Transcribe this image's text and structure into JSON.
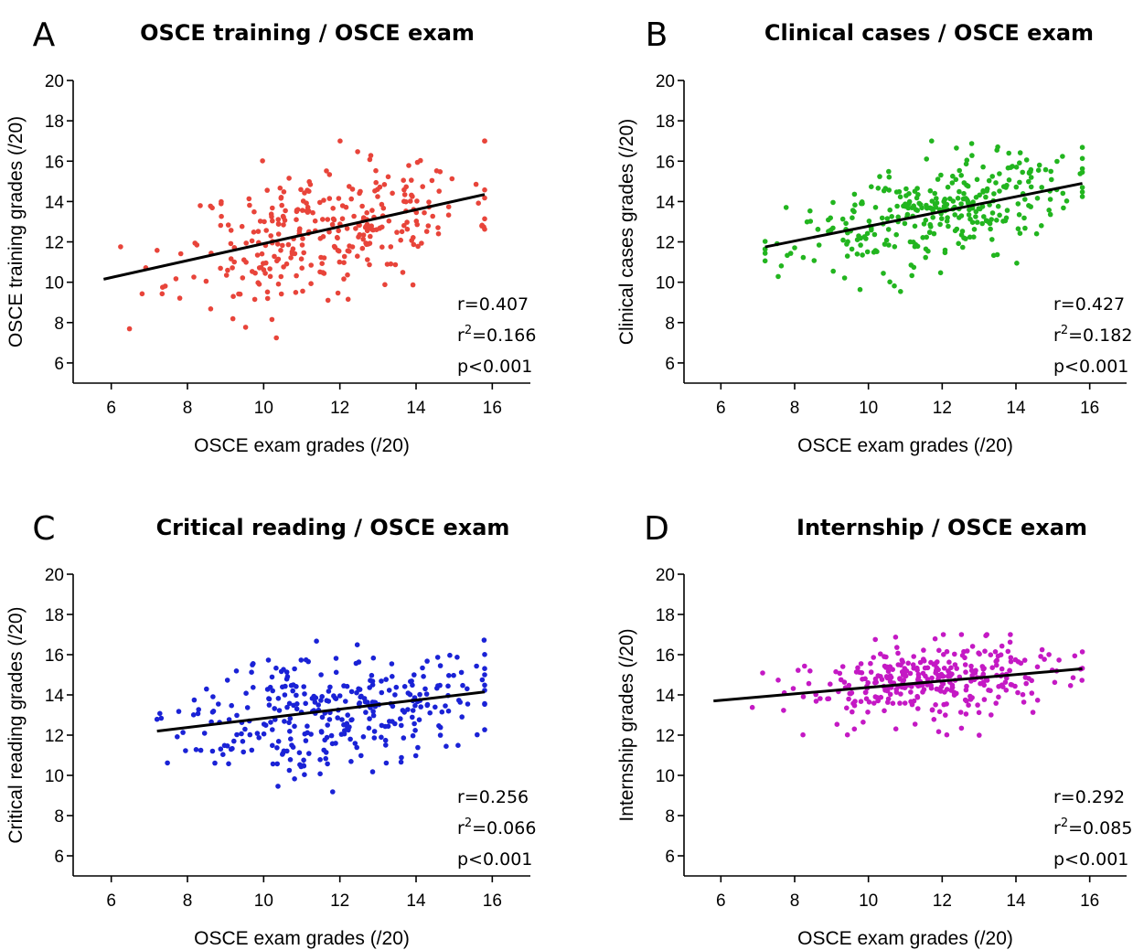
{
  "chart_data": [
    {
      "type": "scatter",
      "panel": "A",
      "title": "OSCE training / OSCE exam",
      "xlabel": "OSCE exam grades (/20)",
      "ylabel": "OSCE training grades (/20)",
      "xlim": [
        5,
        17
      ],
      "ylim": [
        5,
        20
      ],
      "xticks": [
        6,
        8,
        10,
        12,
        14,
        16
      ],
      "yticks": [
        6,
        8,
        10,
        12,
        14,
        16,
        18,
        20
      ],
      "color": "#e8443a",
      "regression": {
        "x": [
          5.8,
          15.8
        ],
        "y": [
          10.15,
          14.35
        ]
      },
      "n_points": 320,
      "x_center": 11.6,
      "x_spread": 1.9,
      "x_range": [
        5.8,
        15.8
      ],
      "y_spread": 1.6,
      "stats": {
        "r": "r=0.407",
        "r2_prefix": "r",
        "r2_sup": "2",
        "r2_value": "=0.166",
        "p": "p<0.001"
      },
      "seed": 11
    },
    {
      "type": "scatter",
      "panel": "B",
      "title": "Clinical cases / OSCE exam",
      "xlabel": "OSCE exam grades (/20)",
      "ylabel": "Clinical cases grades (/20)",
      "xlim": [
        5,
        17
      ],
      "ylim": [
        5,
        20
      ],
      "xticks": [
        6,
        8,
        10,
        12,
        14,
        16
      ],
      "yticks": [
        6,
        8,
        10,
        12,
        14,
        16,
        18,
        20
      ],
      "color": "#22b51f",
      "regression": {
        "x": [
          7.2,
          15.8
        ],
        "y": [
          11.75,
          14.9
        ]
      },
      "n_points": 330,
      "x_center": 11.8,
      "x_spread": 1.9,
      "x_range": [
        7.2,
        15.8
      ],
      "y_spread": 1.2,
      "stats": {
        "r": "r=0.427",
        "r2_prefix": "r",
        "r2_sup": "2",
        "r2_value": "=0.182",
        "p": "p<0.001"
      },
      "seed": 23
    },
    {
      "type": "scatter",
      "panel": "C",
      "title": "Critical reading / OSCE exam",
      "xlabel": "OSCE exam grades (/20)",
      "ylabel": "Critical reading grades (/20)",
      "xlim": [
        5,
        17
      ],
      "ylim": [
        5,
        20
      ],
      "xticks": [
        6,
        8,
        10,
        12,
        14,
        16
      ],
      "yticks": [
        6,
        8,
        10,
        12,
        14,
        16,
        18,
        20
      ],
      "color": "#1a22d6",
      "regression": {
        "x": [
          7.2,
          15.8
        ],
        "y": [
          12.2,
          14.15
        ]
      },
      "n_points": 330,
      "x_center": 11.8,
      "x_spread": 1.9,
      "x_range": [
        7.2,
        15.8
      ],
      "y_spread": 1.45,
      "stats": {
        "r": "r=0.256",
        "r2_prefix": "r",
        "r2_sup": "2",
        "r2_value": "=0.066",
        "p": "p<0.001"
      },
      "seed": 37
    },
    {
      "type": "scatter",
      "panel": "D",
      "title": "Internship / OSCE exam",
      "xlabel": "OSCE exam grades (/20)",
      "ylabel": "Internship grades (/20)",
      "xlim": [
        5,
        17
      ],
      "ylim": [
        5,
        20
      ],
      "xticks": [
        6,
        8,
        10,
        12,
        14,
        16
      ],
      "yticks": [
        6,
        8,
        10,
        12,
        14,
        16,
        18,
        20
      ],
      "color": "#c419c4",
      "regression": {
        "x": [
          5.8,
          15.8
        ],
        "y": [
          13.7,
          15.3
        ]
      },
      "n_points": 340,
      "x_center": 11.9,
      "x_spread": 1.9,
      "x_range": [
        5.8,
        15.8
      ],
      "y_spread": 0.95,
      "stats": {
        "r": "r=0.292",
        "r2_prefix": "r",
        "r2_sup": "2",
        "r2_value": "=0.085",
        "p": "p<0.001"
      },
      "seed": 53
    }
  ]
}
